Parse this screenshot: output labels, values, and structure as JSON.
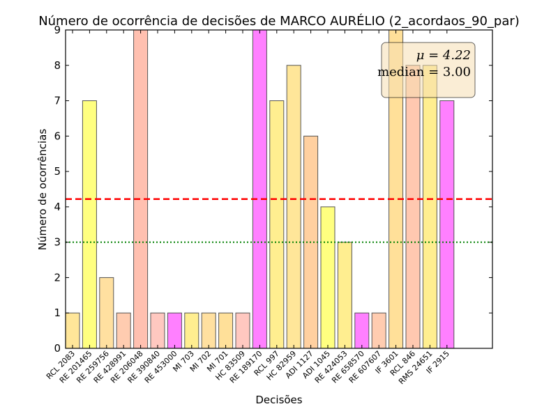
{
  "chart_data": {
    "type": "bar",
    "title": "Número de ocorrência de decisões de MARCO AURÉLIO (2_acordaos_90_par)",
    "xlabel": "Decisões",
    "ylabel": "Número de ocorrências",
    "ylim": [
      0,
      9
    ],
    "yticks": [
      "0",
      "1",
      "2",
      "3",
      "4",
      "5",
      "6",
      "7",
      "8",
      "9"
    ],
    "categories": [
      "RCL 2083",
      "RE 201465",
      "RE 259756",
      "RE 428991",
      "RE 206048",
      "RE 390840",
      "RE 453000",
      "MI 703",
      "MI 702",
      "MI 701",
      "HC 83509",
      "RE 189170",
      "RCL 997",
      "HC 82959",
      "ADI 1127",
      "ADI 1045",
      "RE 424053",
      "RE 658570",
      "RE 607607",
      "IF 3601",
      "RCL 846",
      "RMS 24651",
      "IF 2915"
    ],
    "values": [
      1,
      7,
      2,
      1,
      9,
      1,
      1,
      1,
      1,
      1,
      1,
      9,
      7,
      8,
      6,
      4,
      3,
      1,
      1,
      9,
      8,
      8,
      7
    ],
    "colors": [
      "#ffe699",
      "#ffff80",
      "#ffe0a0",
      "#ffccb0",
      "#ffc0b0",
      "#ffc8c0",
      "#ff80ff",
      "#ffee90",
      "#ffe0a0",
      "#ffe099",
      "#ffc8c0",
      "#ff80ff",
      "#ffee90",
      "#ffe699",
      "#ffd0a0",
      "#ffff80",
      "#ffee90",
      "#ff80ff",
      "#ffccb0",
      "#ffe099",
      "#ffc8b0",
      "#ffee90",
      "#ff80ff"
    ],
    "mean": 4.22,
    "median": 3.0,
    "mean_line_color": "#ff0000",
    "median_line_color": "#008000",
    "stats_box": {
      "mean_text": "μ = 4.22",
      "median_text": "median = 3.00",
      "placement": "top-right"
    },
    "grid": false
  }
}
